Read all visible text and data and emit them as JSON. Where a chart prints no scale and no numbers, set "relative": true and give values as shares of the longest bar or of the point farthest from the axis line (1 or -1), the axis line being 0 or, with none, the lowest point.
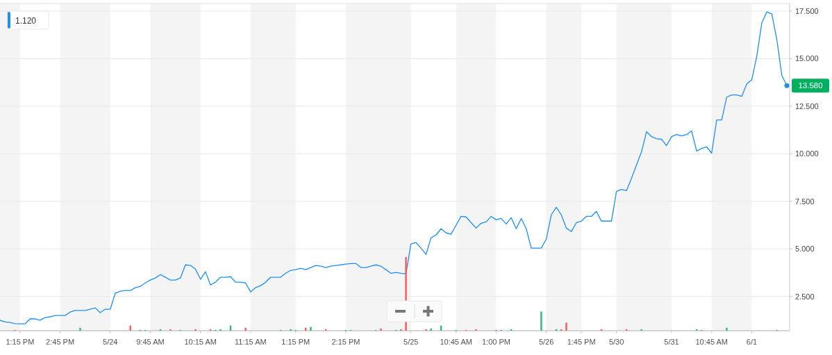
{
  "chart_data": [
    {
      "type": "line",
      "ylim": [
        0.7,
        17.9
      ],
      "categories": [
        null,
        null,
        null,
        null,
        "1:15 PM",
        null,
        null,
        null,
        null,
        null,
        null,
        null,
        "2:45 PM",
        null,
        null,
        null,
        null,
        null,
        null,
        null,
        null,
        null,
        "5/24",
        null,
        null,
        null,
        null,
        null,
        null,
        null,
        "9:45 AM",
        null,
        null,
        null,
        null,
        null,
        null,
        null,
        null,
        null,
        "10:15 AM",
        null,
        null,
        null,
        null,
        null,
        null,
        null,
        null,
        null,
        "11:15 AM",
        null,
        null,
        null,
        null,
        null,
        null,
        null,
        null,
        "1:15 PM",
        null,
        null,
        null,
        null,
        null,
        null,
        null,
        null,
        null,
        "2:15 PM",
        null,
        null,
        null,
        null,
        null,
        null,
        null,
        null,
        null,
        null,
        null,
        null,
        "5/25",
        null,
        null,
        null,
        null,
        null,
        null,
        null,
        null,
        "10:45 AM",
        null,
        null,
        null,
        null,
        null,
        null,
        null,
        "1:00 PM",
        null,
        null,
        null,
        null,
        null,
        null,
        null,
        null,
        null,
        "5/26",
        null,
        null,
        null,
        null,
        null,
        null,
        "1:45 PM",
        null,
        null,
        null,
        null,
        null,
        null,
        "5/30",
        null,
        null,
        null,
        null,
        null,
        null,
        null,
        null,
        null,
        null,
        "5/31",
        null,
        null,
        null,
        null,
        null,
        null,
        null,
        "10:45 AM",
        null,
        null,
        null,
        null,
        null,
        null,
        null,
        "6/1",
        null,
        null,
        null,
        null,
        null,
        null,
        null
      ],
      "yticks": [
        {
          "value": 2.5,
          "label": "2.500"
        },
        {
          "value": 5,
          "label": "5.000"
        },
        {
          "value": 7.5,
          "label": "7.500"
        },
        {
          "value": 10,
          "label": "10.000"
        },
        {
          "value": 12.5,
          "label": "12.500"
        },
        {
          "value": 15,
          "label": "15.000"
        },
        {
          "value": 17.5,
          "label": "17.500"
        }
      ],
      "grid": "y",
      "annotations": [
        "1.120",
        "13.580"
      ],
      "series": [
        {
          "color": "#1e8ff0",
          "values": [
            1.25,
            1.16,
            1.13,
            1.07,
            1.06,
            1.06,
            1.32,
            1.32,
            1.25,
            1.39,
            1.43,
            1.5,
            1.5,
            1.5,
            1.68,
            1.76,
            1.76,
            1.76,
            1.83,
            1.9,
            1.65,
            1.83,
            1.83,
            2.67,
            2.78,
            2.81,
            2.81,
            2.96,
            3.03,
            3.21,
            3.36,
            3.47,
            3.65,
            3.51,
            3.36,
            3.36,
            3.47,
            4.16,
            4.13,
            3.94,
            3.4,
            3.8,
            3.1,
            3.25,
            3.51,
            3.51,
            3.54,
            3.25,
            3.25,
            3.21,
            2.74,
            2.96,
            3.07,
            3.25,
            3.51,
            3.51,
            3.51,
            3.72,
            3.87,
            3.91,
            3.98,
            3.91,
            4.02,
            4.13,
            4.09,
            4.02,
            4.09,
            4.13,
            4.16,
            4.2,
            4.23,
            4.23,
            4.02,
            4.02,
            4.09,
            4.16,
            4.09,
            3.91,
            3.72,
            3.76,
            3.72,
            3.69,
            5.26,
            5.33,
            5.04,
            4.71,
            5.58,
            5.73,
            6.06,
            5.84,
            5.77,
            6.24,
            6.71,
            6.68,
            6.38,
            6.09,
            6.35,
            6.42,
            6.71,
            6.53,
            6.6,
            6.31,
            6.64,
            6.06,
            6.6,
            6.06,
            5.04,
            5.04,
            5.04,
            5.51,
            6.79,
            7.19,
            6.79,
            6.09,
            5.91,
            6.38,
            6.46,
            6.71,
            6.71,
            6.97,
            6.46,
            6.46,
            6.46,
            8.02,
            8.13,
            8.06,
            8.71,
            9.41,
            10.1,
            11.16,
            10.9,
            10.79,
            10.76,
            10.43,
            10.9,
            11.01,
            10.94,
            11.01,
            11.2,
            10.14,
            10.28,
            10.36,
            10.03,
            11.78,
            11.78,
            12.98,
            13.09,
            13.09,
            13.02,
            13.67,
            13.89,
            15.13,
            16.88,
            17.46,
            17.35,
            16.01,
            14.11,
            13.58
          ]
        }
      ]
    },
    {
      "type": "bar",
      "relative": true,
      "categories": [
        null,
        null,
        null,
        null,
        null,
        null,
        null,
        null,
        null,
        null,
        null,
        null,
        null,
        null,
        null,
        null,
        null,
        null,
        null,
        null,
        null,
        null,
        null,
        null,
        null,
        null,
        null,
        null,
        null,
        null,
        null,
        null,
        null,
        null,
        null,
        null,
        null,
        null,
        null,
        null,
        null,
        null,
        null,
        null,
        null,
        null,
        null,
        null,
        null,
        null,
        null,
        null,
        null,
        null,
        null,
        null,
        null,
        null,
        null,
        null,
        null,
        null,
        null,
        null,
        null,
        null,
        null,
        null,
        null,
        null,
        null,
        null,
        null,
        null,
        null,
        null,
        null,
        null,
        null,
        null,
        null,
        null,
        null,
        null,
        null,
        null,
        null,
        null,
        null,
        null,
        null,
        null,
        null,
        null,
        null,
        null,
        null,
        null,
        null,
        null,
        null,
        null,
        null,
        null,
        null,
        null,
        null,
        null,
        null,
        null,
        null,
        null,
        null,
        null,
        null,
        null,
        null,
        null,
        null,
        null,
        null,
        null,
        null,
        null,
        null,
        null,
        null,
        null,
        null,
        null,
        null,
        null,
        null,
        null,
        null,
        null,
        null,
        null,
        null,
        null,
        null,
        null,
        null,
        null,
        null,
        null,
        null,
        null,
        null,
        null,
        null,
        null,
        null,
        null,
        null,
        null,
        null,
        null
      ],
      "values": [
        null,
        null,
        null,
        0.01,
        null,
        null,
        null,
        null,
        null,
        null,
        null,
        null,
        null,
        null,
        null,
        null,
        0.04,
        null,
        null,
        null,
        null,
        null,
        null,
        null,
        null,
        null,
        0.07,
        null,
        0.01,
        0.01,
        null,
        null,
        0.02,
        null,
        0.02,
        null,
        0.01,
        null,
        null,
        0.02,
        null,
        null,
        0.02,
        0.01,
        0.02,
        null,
        0.07,
        null,
        null,
        0.04,
        null,
        null,
        null,
        null,
        null,
        null,
        0.01,
        null,
        0.02,
        0.01,
        null,
        0.04,
        0.05,
        null,
        null,
        0.02,
        null,
        null,
        null,
        0.01,
        0.01,
        null,
        null,
        null,
        null,
        0.01,
        0.03,
        null,
        null,
        0.01,
        0.02,
        1,
        null,
        null,
        null,
        0.02,
        0.03,
        null,
        0.07,
        null,
        null,
        0.01,
        null,
        0.01,
        null,
        0.02,
        null,
        null,
        null,
        0.01,
        0.01,
        null,
        0.02,
        null,
        null,
        null,
        null,
        null,
        0.26,
        null,
        null,
        0.02,
        0.02,
        0.11,
        null,
        null,
        null,
        null,
        null,
        null,
        0.02,
        null,
        null,
        null,
        null,
        0.02,
        null,
        null,
        0.02,
        null,
        null,
        null,
        null,
        null,
        null,
        null,
        null,
        null,
        null,
        0.02,
        0.01,
        null,
        null,
        null,
        null,
        0.04,
        null,
        null,
        null,
        null,
        null,
        null,
        null,
        null,
        null,
        0.01,
        null,
        null
      ],
      "colors": [
        null,
        null,
        null,
        "#f25c5c",
        null,
        null,
        null,
        null,
        null,
        null,
        null,
        null,
        null,
        null,
        null,
        null,
        "#2fb67c",
        null,
        null,
        null,
        null,
        null,
        null,
        null,
        null,
        null,
        "#f25c5c",
        null,
        "#2fb67c",
        "#2fb67c",
        null,
        null,
        "#2fb67c",
        null,
        "#f25c5c",
        null,
        "#2fb67c",
        null,
        null,
        "#f25c5c",
        null,
        null,
        "#f25c5c",
        "#2fb67c",
        "#2fb67c",
        null,
        "#2fb67c",
        null,
        null,
        "#f25c5c",
        null,
        null,
        null,
        null,
        null,
        null,
        "#2fb67c",
        null,
        "#2fb67c",
        "#2fb67c",
        null,
        "#f25c5c",
        "#2fb67c",
        null,
        null,
        "#f25c5c",
        null,
        null,
        null,
        "#2fb67c",
        "#2fb67c",
        null,
        null,
        null,
        null,
        "#2fb67c",
        "#f25c5c",
        null,
        null,
        "#2fb67c",
        "#f25c5c",
        "#f25c5c",
        null,
        null,
        null,
        "#f25c5c",
        "#2fb67c",
        null,
        "#2fb67c",
        null,
        null,
        "#2fb67c",
        null,
        "#f25c5c",
        null,
        "#f25c5c",
        null,
        null,
        null,
        "#f25c5c",
        "#2fb67c",
        null,
        "#2fb67c",
        null,
        null,
        null,
        null,
        null,
        "#2fb67c",
        null,
        null,
        "#2fb67c",
        "#f25c5c",
        "#f25c5c",
        null,
        null,
        null,
        null,
        null,
        null,
        "#f25c5c",
        null,
        null,
        null,
        null,
        "#f25c5c",
        null,
        null,
        "#2fb67c",
        null,
        null,
        null,
        null,
        null,
        null,
        null,
        null,
        null,
        null,
        "#2fb67c",
        "#2fb67c",
        null,
        null,
        null,
        null,
        "#2fb67c",
        null,
        null,
        null,
        null,
        null,
        null,
        null,
        null,
        null,
        "#f25c5c",
        null,
        null
      ]
    }
  ]
}
